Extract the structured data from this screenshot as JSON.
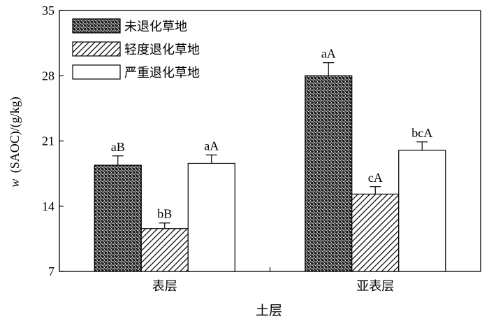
{
  "chart_data": {
    "type": "bar",
    "categories": [
      "表层",
      "亚表层"
    ],
    "series": [
      {
        "name": "未退化草地",
        "pattern": "crosshatch",
        "values": [
          18.4,
          28.0
        ],
        "errors": [
          1.0,
          1.4
        ],
        "labels": [
          "aB",
          "aA"
        ]
      },
      {
        "name": "轻度退化草地",
        "pattern": "diagonal",
        "values": [
          11.6,
          15.3
        ],
        "errors": [
          0.6,
          0.8
        ],
        "labels": [
          "bB",
          "cA"
        ]
      },
      {
        "name": "严重退化草地",
        "pattern": "none",
        "values": [
          18.6,
          20.0
        ],
        "errors": [
          0.9,
          0.9
        ],
        "labels": [
          "aA",
          "bcA"
        ]
      }
    ],
    "xlabel": "土层",
    "ylabel_italic": "w",
    "ylabel": "(SAOC)/(g/kg)",
    "ylim": [
      7,
      35
    ],
    "yticks": [
      7,
      14,
      21,
      28,
      35
    ],
    "grid": false,
    "legend_position": "top-left"
  }
}
